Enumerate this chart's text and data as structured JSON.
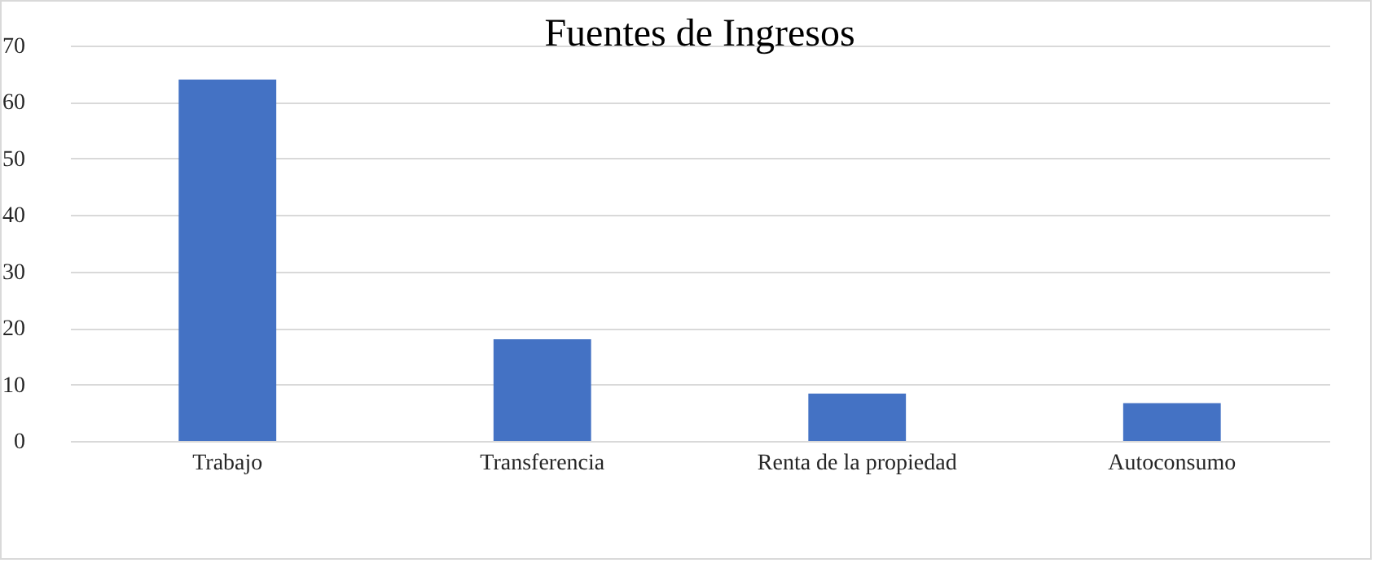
{
  "chart_data": {
    "type": "bar",
    "title": "Fuentes de Ingresos",
    "categories": [
      "Trabajo",
      "Transferencia",
      "Renta de la propiedad",
      "Autoconsumo"
    ],
    "values": [
      64,
      18,
      8.4,
      6.7
    ],
    "color": "#4472c4",
    "ylim": [
      0,
      70
    ],
    "yticks": [
      0,
      10,
      20,
      30,
      40,
      50,
      60,
      70
    ],
    "grid": "y"
  }
}
